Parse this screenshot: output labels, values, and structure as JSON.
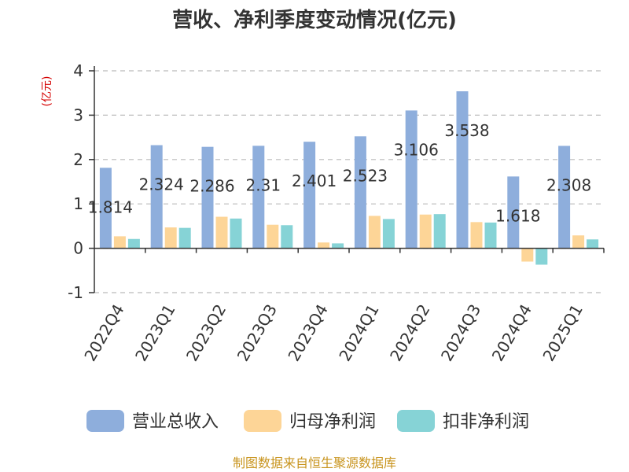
{
  "chart_data": {
    "type": "bar",
    "title": "营收、净利季度变动情况(亿元)",
    "ylabel": "(亿元)",
    "ylim": [
      -1,
      4
    ],
    "yticks": [
      4,
      3,
      2,
      1,
      0,
      -1
    ],
    "grid": true,
    "legend_position": "bottom",
    "categories": [
      "2022Q4",
      "2023Q1",
      "2023Q2",
      "2023Q3",
      "2023Q4",
      "2024Q1",
      "2024Q2",
      "2024Q3",
      "2024Q4",
      "2025Q1"
    ],
    "series": [
      {
        "name": "营业总收入",
        "color": "#8eaedc",
        "values": [
          1.814,
          2.324,
          2.286,
          2.31,
          2.401,
          2.523,
          3.106,
          3.538,
          1.618,
          2.308
        ]
      },
      {
        "name": "归母净利润",
        "color": "#fdd597",
        "values": [
          0.27,
          0.47,
          0.71,
          0.53,
          0.13,
          0.73,
          0.76,
          0.59,
          -0.3,
          0.29
        ]
      },
      {
        "name": "扣非净利润",
        "color": "#86d3d6",
        "values": [
          0.21,
          0.46,
          0.67,
          0.52,
          0.11,
          0.66,
          0.77,
          0.58,
          -0.37,
          0.2
        ]
      }
    ],
    "data_labels": [
      "1.814",
      "2.324",
      "2.286",
      "2.31",
      "2.401",
      "2.523",
      "3.106",
      "3.538",
      "1.618",
      "2.308"
    ]
  },
  "source_text": "制图数据来自恒生聚源数据库"
}
